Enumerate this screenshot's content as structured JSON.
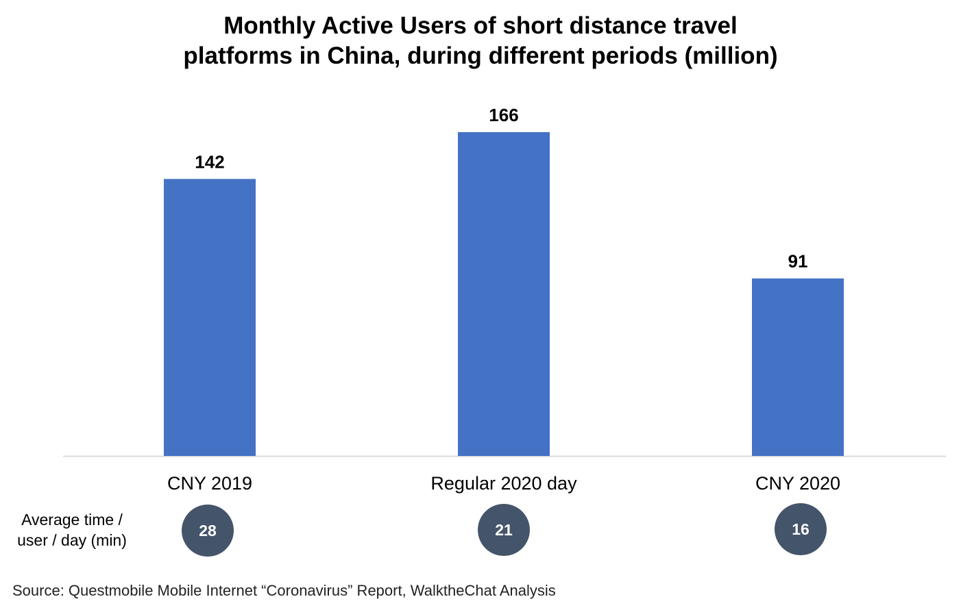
{
  "chart_data": {
    "type": "bar",
    "title_lines": [
      "Monthly Active Users of short distance travel",
      "platforms in China, during different periods (million)"
    ],
    "categories": [
      "CNY 2019",
      "Regular 2020 day",
      "CNY 2020"
    ],
    "values": [
      142,
      166,
      91
    ],
    "data_labels": [
      "142",
      "166",
      "91"
    ],
    "bar_color": "#4472c4",
    "xlabel": "",
    "ylabel": "",
    "ylim": [
      0,
      166
    ],
    "grid": false,
    "legend": "none"
  },
  "metric": {
    "label_lines": [
      "Average time /",
      "user / day (min)"
    ],
    "values": [
      "28",
      "21",
      "16"
    ],
    "circle_color": "#44546a"
  },
  "source": "Source: Questmobile Mobile Internet “Coronavirus” Report, WalktheChat Analysis"
}
